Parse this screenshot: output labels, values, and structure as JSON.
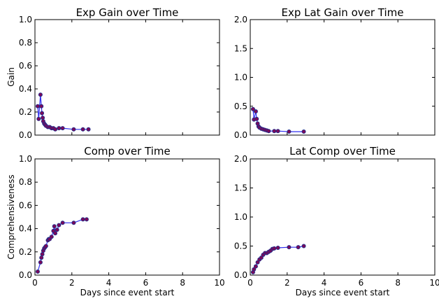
{
  "colors": {
    "line": "#2f2ff0",
    "marker_face": "#7a0a5a",
    "marker_edge": "#1b2f8f",
    "axis": "#000000",
    "background": "#ffffff"
  },
  "chart_data": [
    {
      "type": "line",
      "title": "Exp Gain over Time",
      "xlabel": "",
      "ylabel": "Gain",
      "xlim": [
        0,
        10
      ],
      "ylim": [
        0,
        1.0
      ],
      "xticks": [
        "0",
        "2",
        "4",
        "6",
        "8",
        "10"
      ],
      "yticks": [
        "0.0",
        "0.2",
        "0.4",
        "0.6",
        "0.8",
        "1.0"
      ],
      "show_xtick_labels": false,
      "grid": false,
      "series": [
        {
          "x": [
            0.15,
            0.2,
            0.3,
            0.35,
            0.38,
            0.42,
            0.45,
            0.5,
            0.55,
            0.6,
            0.7,
            0.8,
            0.9,
            1.0,
            1.1,
            1.3,
            1.5,
            2.1,
            2.6,
            2.9
          ],
          "y": [
            0.25,
            0.14,
            0.35,
            0.25,
            0.19,
            0.15,
            0.12,
            0.1,
            0.09,
            0.08,
            0.07,
            0.07,
            0.06,
            0.06,
            0.05,
            0.06,
            0.06,
            0.05,
            0.05,
            0.05
          ]
        }
      ]
    },
    {
      "type": "line",
      "title": "Exp Lat Gain over Time",
      "xlabel": "",
      "ylabel": "",
      "xlim": [
        0,
        10
      ],
      "ylim": [
        0,
        2.0
      ],
      "xticks": [
        "0",
        "2",
        "4",
        "6",
        "8",
        "10"
      ],
      "yticks": [
        "0.0",
        "0.5",
        "1.0",
        "1.5",
        "2.0"
      ],
      "show_xtick_labels": false,
      "grid": false,
      "series": [
        {
          "x": [
            0.15,
            0.2,
            0.3,
            0.35,
            0.4,
            0.45,
            0.5,
            0.6,
            0.7,
            0.8,
            0.9,
            1.0,
            1.3,
            1.5,
            2.1,
            2.9
          ],
          "y": [
            0.45,
            0.27,
            0.41,
            0.28,
            0.2,
            0.15,
            0.13,
            0.11,
            0.1,
            0.09,
            0.08,
            0.07,
            0.07,
            0.07,
            0.06,
            0.06
          ]
        }
      ]
    },
    {
      "type": "line",
      "title": "Comp over Time",
      "xlabel": "Days since event start",
      "ylabel": "Comprehensiveness",
      "xlim": [
        0,
        10
      ],
      "ylim": [
        0,
        1.0
      ],
      "xticks": [
        "0",
        "2",
        "4",
        "6",
        "8",
        "10"
      ],
      "yticks": [
        "0.0",
        "0.2",
        "0.4",
        "0.6",
        "0.8",
        "1.0"
      ],
      "show_xtick_labels": true,
      "grid": false,
      "series": [
        {
          "x": [
            0.15,
            0.3,
            0.35,
            0.4,
            0.45,
            0.5,
            0.55,
            0.6,
            0.7,
            0.75,
            0.8,
            0.9,
            1.0,
            1.05,
            1.1,
            1.2,
            1.3,
            1.5,
            2.1,
            2.6,
            2.8
          ],
          "y": [
            0.03,
            0.11,
            0.15,
            0.18,
            0.21,
            0.23,
            0.24,
            0.25,
            0.3,
            0.31,
            0.31,
            0.33,
            0.38,
            0.42,
            0.36,
            0.39,
            0.43,
            0.45,
            0.45,
            0.48,
            0.48
          ]
        }
      ]
    },
    {
      "type": "line",
      "title": "Lat Comp over Time",
      "xlabel": "Days since event start",
      "ylabel": "",
      "xlim": [
        0,
        10
      ],
      "ylim": [
        0,
        2.0
      ],
      "xticks": [
        "0",
        "2",
        "4",
        "6",
        "8",
        "10"
      ],
      "yticks": [
        "0.0",
        "0.5",
        "1.0",
        "1.5",
        "2.0"
      ],
      "show_xtick_labels": true,
      "grid": false,
      "series": [
        {
          "x": [
            0.15,
            0.2,
            0.3,
            0.4,
            0.5,
            0.6,
            0.7,
            0.8,
            0.9,
            1.0,
            1.1,
            1.2,
            1.3,
            1.5,
            2.1,
            2.6,
            2.9
          ],
          "y": [
            0.05,
            0.1,
            0.15,
            0.22,
            0.27,
            0.3,
            0.35,
            0.38,
            0.38,
            0.4,
            0.42,
            0.45,
            0.46,
            0.47,
            0.48,
            0.48,
            0.5
          ]
        }
      ]
    }
  ]
}
